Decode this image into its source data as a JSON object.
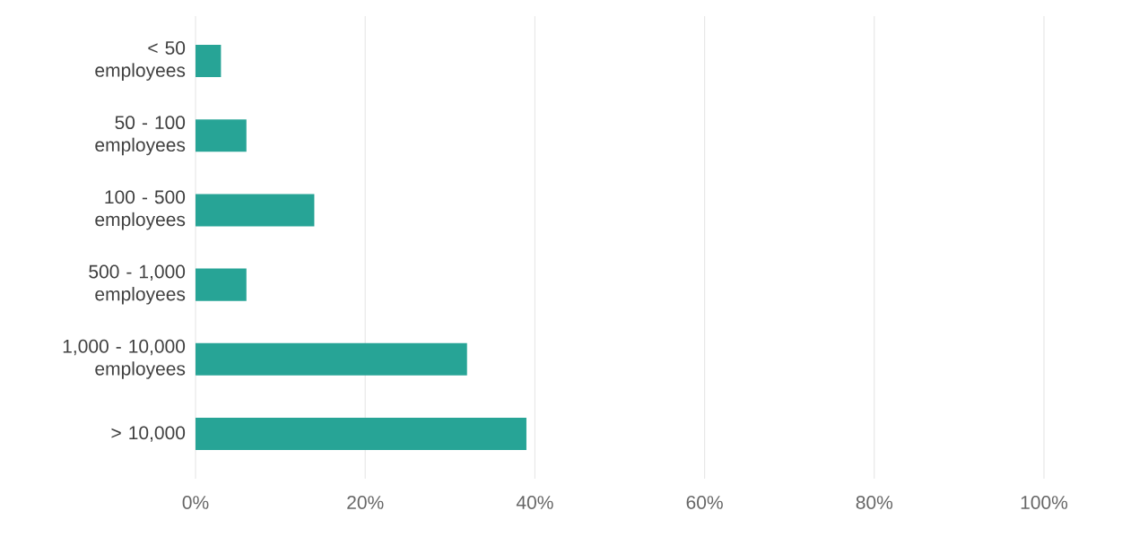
{
  "chart_data": {
    "type": "bar",
    "orientation": "horizontal",
    "categories": [
      "< 50 employees",
      "50 - 100 employees",
      "100 - 500 employees",
      "500 - 1,000 employees",
      "1,000 - 10,000 employees",
      "> 10,000"
    ],
    "values": [
      3,
      6,
      14,
      6,
      32,
      39
    ],
    "color": "#27a496",
    "xlim": [
      0,
      100
    ],
    "xticks": [
      {
        "value": 0,
        "label": "0%"
      },
      {
        "value": 20,
        "label": "20%"
      },
      {
        "value": 40,
        "label": "40%"
      },
      {
        "value": 60,
        "label": "60%"
      },
      {
        "value": 80,
        "label": "80%"
      },
      {
        "value": 100,
        "label": "100%"
      }
    ],
    "grid": "x"
  }
}
